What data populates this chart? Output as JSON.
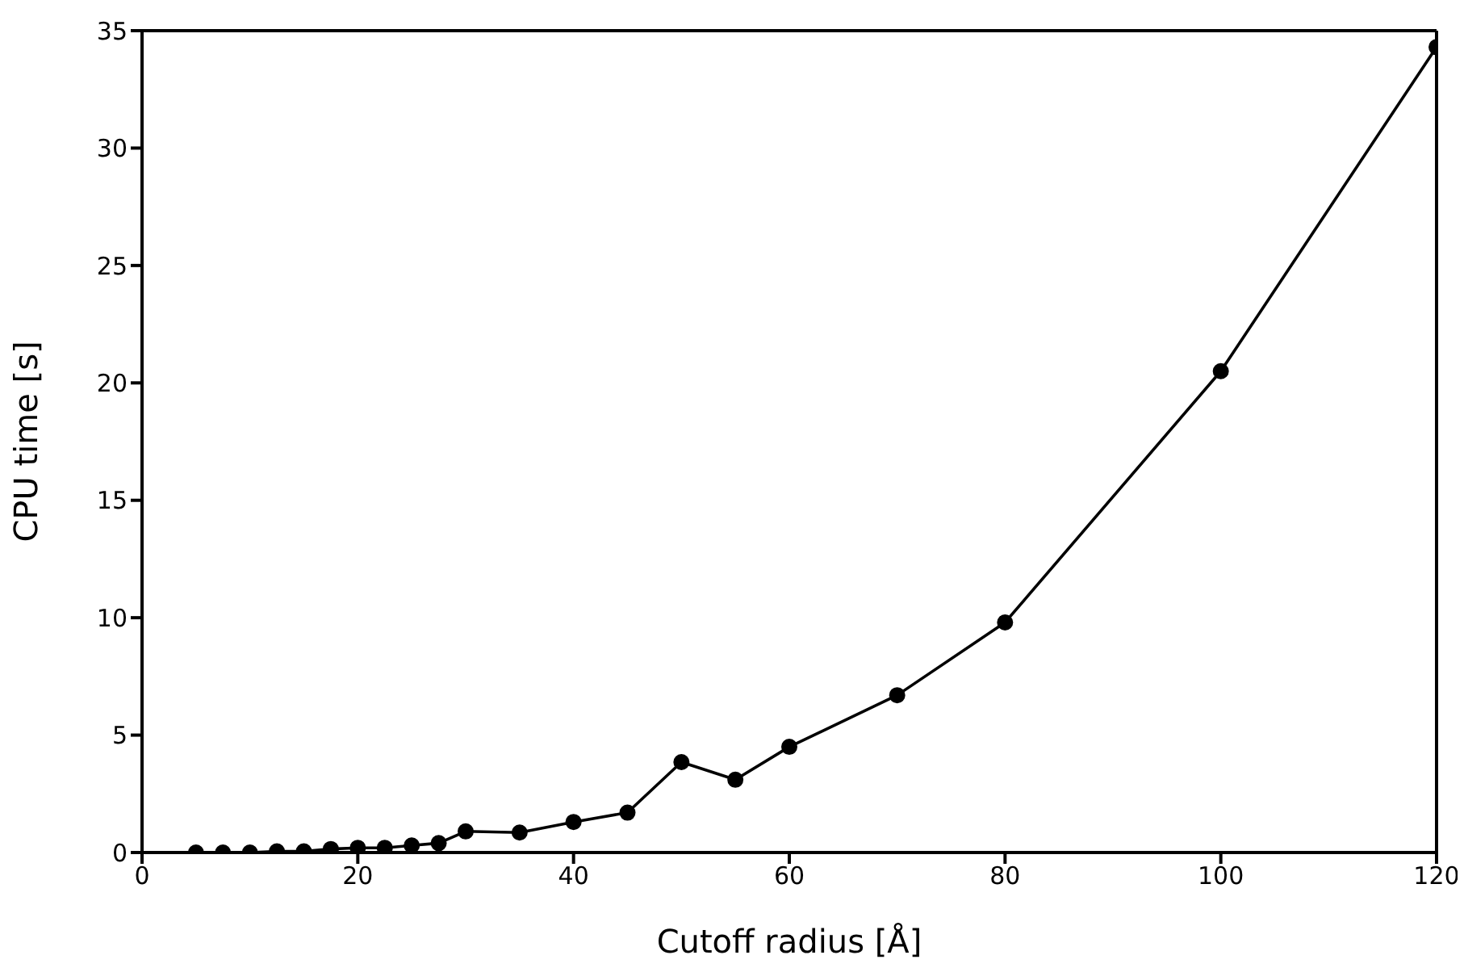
{
  "chart_data": {
    "type": "line",
    "xlabel": "Cutoff radius [Å]",
    "ylabel": "CPU time [s]",
    "x": [
      5,
      7.5,
      10,
      12.5,
      15,
      17.5,
      20,
      22.5,
      25,
      27.5,
      30,
      35,
      40,
      45,
      50,
      55,
      60,
      70,
      80,
      100,
      120
    ],
    "series": [
      {
        "color": "#000000",
        "values": [
          0,
          0,
          0,
          0.05,
          0.05,
          0.15,
          0.2,
          0.2,
          0.3,
          0.4,
          0.9,
          0.85,
          1.3,
          1.7,
          3.85,
          3.1,
          4.5,
          6.7,
          9.8,
          20.5,
          34.3
        ]
      }
    ],
    "xlim": [
      0,
      120
    ],
    "xticks": [
      0,
      20,
      40,
      60,
      80,
      100,
      120
    ],
    "ylim": [
      0,
      35
    ],
    "yticks": [
      0,
      5,
      10,
      15,
      20,
      25,
      30,
      35
    ],
    "grid": false,
    "legend": false,
    "marker": "circle",
    "line_style": "solid"
  }
}
